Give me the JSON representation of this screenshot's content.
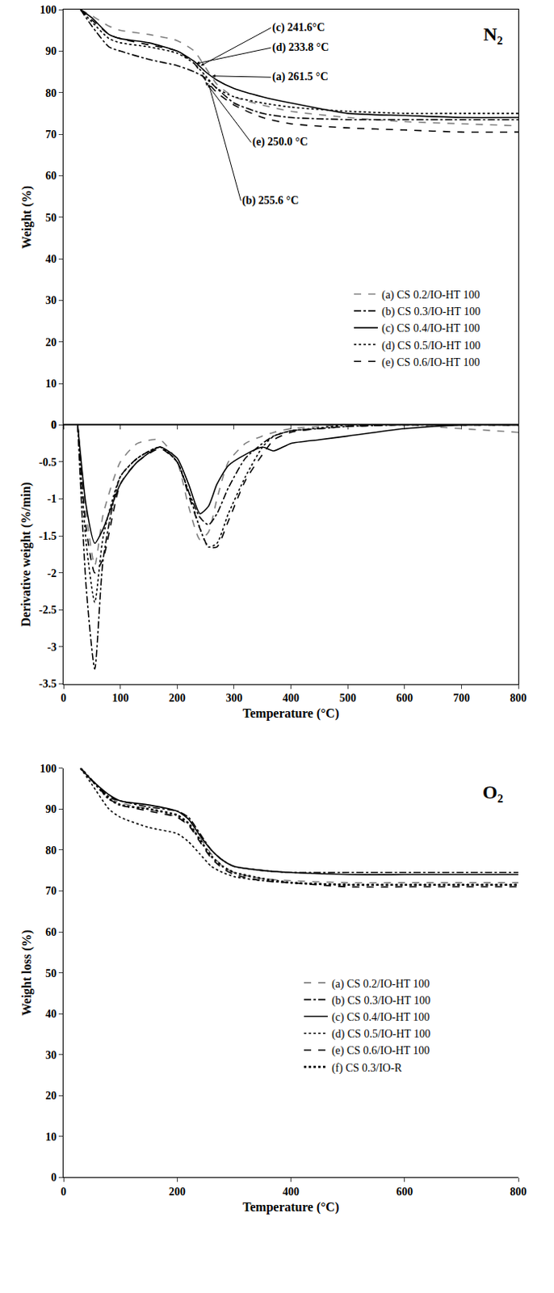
{
  "chart_data": [
    {
      "type": "line",
      "title": "N₂",
      "y_label": "Weight (%)",
      "x": [
        30,
        50,
        80,
        100,
        150,
        200,
        230,
        250,
        270,
        300,
        350,
        400,
        500,
        600,
        700,
        800
      ],
      "xlim": [
        0,
        800
      ],
      "xticks": [
        0,
        100,
        200,
        300,
        400,
        500,
        600,
        700,
        800
      ],
      "ylim": [
        0,
        100
      ],
      "yticks": [
        0,
        10,
        20,
        30,
        40,
        50,
        60,
        70,
        80,
        90,
        100
      ],
      "tick_labels": "y",
      "legend": "lower right",
      "series": [
        {
          "name": "(a) CS 0.2/IO-HT 100",
          "color": "#808080",
          "line_style": "dashed",
          "values": [
            100,
            98.5,
            96,
            95,
            94,
            92.5,
            90,
            86,
            82,
            79,
            77,
            75.5,
            74,
            73,
            72.5,
            72
          ]
        },
        {
          "name": "(b) CS 0.3/IO-HT 100",
          "color": "#000000",
          "line_style": "dashdot",
          "values": [
            100,
            96,
            91,
            90,
            88,
            86.5,
            85,
            83.5,
            81,
            77.5,
            75,
            74,
            73.5,
            73.5,
            73.5,
            73.5
          ]
        },
        {
          "name": "(c) CS 0.4/IO-HT 100",
          "color": "#000000",
          "line_style": "solid",
          "values": [
            100,
            98,
            94,
            93,
            92,
            90,
            87.5,
            85,
            83,
            81,
            79,
            77.5,
            75,
            74.5,
            74,
            74
          ]
        },
        {
          "name": "(d) CS 0.5/IO-HT 100",
          "color": "#000000",
          "line_style": "dotted",
          "values": [
            100,
            97,
            93,
            92,
            91,
            89.5,
            87,
            84,
            81,
            79,
            77.5,
            76.5,
            75.5,
            75,
            75,
            75
          ]
        },
        {
          "name": "(e) CS 0.6/IO-HT 100",
          "color": "#000000",
          "line_style": "dashed",
          "values": [
            100,
            97.5,
            94,
            93,
            91.5,
            90,
            87,
            83,
            80,
            77,
            74,
            72.5,
            71.5,
            71,
            70.5,
            70.5
          ]
        }
      ],
      "annotations": [
        {
          "text": "(c) 241.6°C",
          "x": 241.6,
          "y": 86.5,
          "text_x": 365,
          "text_y": 95.6
        },
        {
          "text": "(d) 233.8 °C",
          "x": 233.8,
          "y": 87,
          "text_x": 365,
          "text_y": 90.8
        },
        {
          "text": "(a) 261.5 °C",
          "x": 261.5,
          "y": 84,
          "text_x": 365,
          "text_y": 83.7
        },
        {
          "text": "(e) 250.0 °C",
          "x": 250,
          "y": 82.5,
          "text_x": 330,
          "text_y": 68
        },
        {
          "text": "(b) 255.6 °C",
          "x": 255.6,
          "y": 82,
          "text_x": 312,
          "text_y": 54
        }
      ]
    },
    {
      "type": "line",
      "x_label": "Temperature (°C)",
      "y_label": "Derivative weight (%/min)",
      "x": [
        25,
        40,
        55,
        70,
        100,
        130,
        170,
        200,
        220,
        240,
        255,
        270,
        290,
        320,
        350,
        370,
        400,
        450,
        500,
        600,
        700,
        800
      ],
      "xlim": [
        0,
        800
      ],
      "xticks": [
        0,
        100,
        200,
        300,
        400,
        500,
        600,
        700,
        800
      ],
      "ylim": [
        -3.5,
        0
      ],
      "yticks": [
        -3.5,
        -3,
        -2.5,
        -2,
        -1.5,
        -1,
        -0.5,
        0
      ],
      "series": [
        {
          "name": "(a) CS 0.2/IO-HT 100",
          "color": "#808080",
          "line_style": "dashed",
          "values": [
            0,
            -1.2,
            -1.9,
            -1.2,
            -0.5,
            -0.25,
            -0.2,
            -0.5,
            -1.1,
            -1.55,
            -1.45,
            -1.0,
            -0.5,
            -0.25,
            -0.15,
            -0.1,
            -0.05,
            -0.02,
            0,
            0,
            -0.05,
            -0.1
          ]
        },
        {
          "name": "(b) CS 0.3/IO-HT 100",
          "color": "#000000",
          "line_style": "dashdot",
          "values": [
            0,
            -2.2,
            -3.3,
            -1.8,
            -0.7,
            -0.45,
            -0.3,
            -0.5,
            -0.9,
            -1.25,
            -1.35,
            -1.2,
            -0.85,
            -0.45,
            -0.25,
            -0.15,
            -0.08,
            -0.05,
            -0.02,
            0,
            0,
            0
          ]
        },
        {
          "name": "(c) CS 0.4/IO-HT 100",
          "color": "#000000",
          "line_style": "solid",
          "values": [
            0,
            -1.1,
            -1.6,
            -1.4,
            -0.8,
            -0.5,
            -0.3,
            -0.45,
            -0.8,
            -1.2,
            -1.1,
            -0.8,
            -0.55,
            -0.4,
            -0.3,
            -0.35,
            -0.25,
            -0.2,
            -0.15,
            -0.05,
            0,
            0
          ]
        },
        {
          "name": "(d) CS 0.5/IO-HT 100",
          "color": "#000000",
          "line_style": "dotted",
          "values": [
            0,
            -1.6,
            -2.4,
            -1.5,
            -0.7,
            -0.45,
            -0.3,
            -0.5,
            -0.9,
            -1.4,
            -1.65,
            -1.6,
            -1.2,
            -0.7,
            -0.3,
            -0.15,
            -0.08,
            -0.04,
            0,
            0,
            0,
            0
          ]
        },
        {
          "name": "(e) CS 0.6/IO-HT 100",
          "color": "#000000",
          "line_style": "dashed",
          "values": [
            0,
            -1.4,
            -2.0,
            -1.8,
            -0.8,
            -0.5,
            -0.32,
            -0.5,
            -0.95,
            -1.4,
            -1.65,
            -1.65,
            -1.3,
            -0.75,
            -0.4,
            -0.2,
            -0.1,
            -0.05,
            -0.02,
            0,
            0,
            0
          ]
        }
      ]
    },
    {
      "type": "line",
      "title": "O₂",
      "x_label": "Temperature (°C)",
      "y_label": "Weight loss (%)",
      "x": [
        30,
        50,
        80,
        100,
        150,
        200,
        220,
        240,
        260,
        280,
        300,
        350,
        400,
        500,
        600,
        700,
        800
      ],
      "xlim": [
        0,
        800
      ],
      "xticks": [
        0,
        200,
        400,
        600,
        800
      ],
      "ylim": [
        0,
        100
      ],
      "yticks": [
        0,
        10,
        20,
        30,
        40,
        50,
        60,
        70,
        80,
        90,
        100
      ],
      "legend": "center right",
      "series": [
        {
          "name": "(a) CS 0.2/IO-HT 100",
          "color": "#808080",
          "line_style": "dashed",
          "values": [
            100,
            97,
            93,
            91.5,
            90,
            88,
            86,
            83,
            79,
            76,
            74.5,
            73,
            72.5,
            72,
            72,
            72,
            72
          ]
        },
        {
          "name": "(b) CS 0.3/IO-HT 100",
          "color": "#000000",
          "line_style": "dashdot",
          "values": [
            100,
            97,
            93,
            92,
            90.5,
            89.5,
            88,
            84,
            80,
            77.5,
            76,
            75,
            74.5,
            74.5,
            74.5,
            74.5,
            74.5
          ]
        },
        {
          "name": "(c) CS 0.4/IO-HT 100",
          "color": "#000000",
          "line_style": "solid",
          "values": [
            100,
            97,
            93.5,
            92,
            91,
            89.5,
            87.5,
            83.5,
            80,
            77.5,
            76,
            75,
            74.5,
            74,
            74,
            74,
            74
          ]
        },
        {
          "name": "(d) CS 0.5/IO-HT 100",
          "color": "#000000",
          "line_style": "dotted",
          "values": [
            100,
            96,
            90,
            88,
            85.5,
            84,
            82,
            79,
            76,
            74.5,
            73.5,
            72.5,
            72,
            71.5,
            71.5,
            71.5,
            71.5
          ]
        },
        {
          "name": "(e) CS 0.6/IO-HT 100",
          "color": "#000000",
          "line_style": "dashed",
          "values": [
            100,
            97,
            92.5,
            91,
            89.5,
            88,
            86,
            82,
            78,
            75.5,
            74,
            72.5,
            72,
            71,
            71,
            71,
            71
          ]
        },
        {
          "name": "(f) CS 0.3/IO-R",
          "color": "#000000",
          "line_style": "dotted",
          "values": [
            100,
            97,
            92.5,
            91,
            90,
            88.5,
            86.5,
            82.5,
            78.5,
            76,
            74.5,
            73,
            72,
            71.5,
            71.5,
            71.5,
            71.5
          ]
        }
      ]
    }
  ]
}
